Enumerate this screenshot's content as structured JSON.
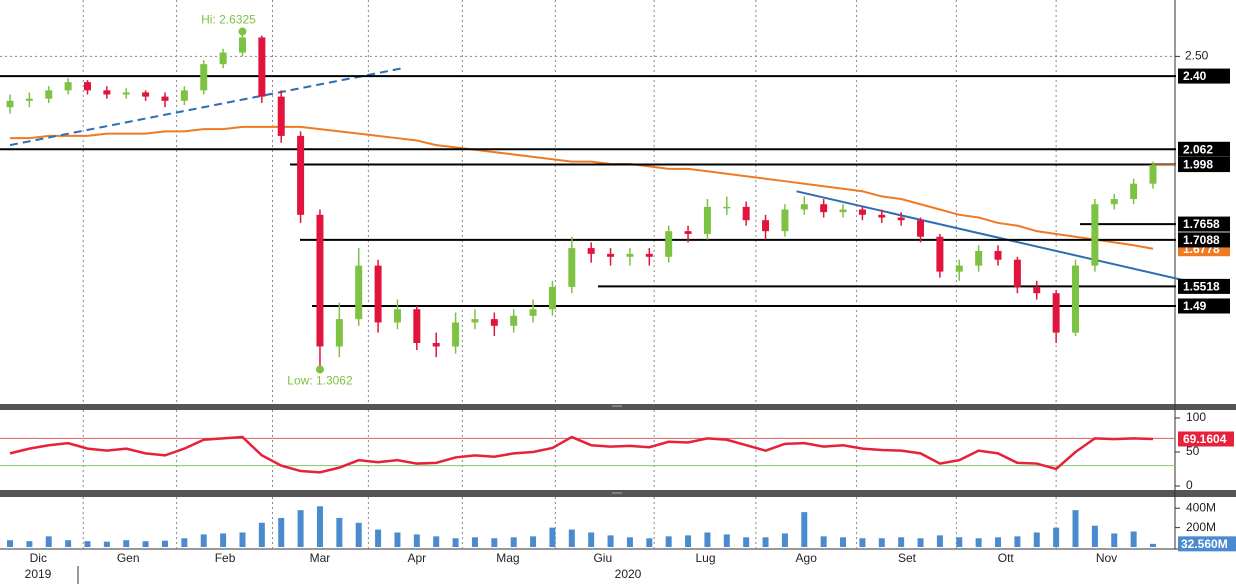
{
  "chart_data": {
    "type": "candlestick",
    "log": true,
    "up_color": "#7dc242",
    "down_color": "#e0143c",
    "open": [
      2.25,
      2.28,
      2.29,
      2.33,
      2.37,
      2.33,
      2.31,
      2.32,
      2.3,
      2.28,
      2.33,
      2.46,
      2.52,
      2.6,
      2.3,
      2.12,
      1.8,
      1.37,
      1.45,
      1.62,
      1.44,
      1.48,
      1.38,
      1.37,
      1.44,
      1.45,
      1.43,
      1.46,
      1.48,
      1.55,
      1.68,
      1.66,
      1.65,
      1.66,
      1.65,
      1.74,
      1.73,
      1.83,
      1.83,
      1.78,
      1.74,
      1.82,
      1.84,
      1.81,
      1.82,
      1.8,
      1.79,
      1.78,
      1.72,
      1.6,
      1.62,
      1.67,
      1.64,
      1.55,
      1.53,
      1.41,
      1.62,
      1.84,
      1.86,
      1.92
    ],
    "high": [
      2.31,
      2.32,
      2.35,
      2.39,
      2.38,
      2.35,
      2.34,
      2.33,
      2.32,
      2.35,
      2.48,
      2.54,
      2.6325,
      2.61,
      2.33,
      2.14,
      1.82,
      1.5,
      1.68,
      1.64,
      1.51,
      1.49,
      1.41,
      1.47,
      1.48,
      1.47,
      1.48,
      1.51,
      1.57,
      1.72,
      1.7,
      1.68,
      1.68,
      1.68,
      1.76,
      1.76,
      1.86,
      1.87,
      1.85,
      1.8,
      1.84,
      1.87,
      1.86,
      1.84,
      1.83,
      1.82,
      1.81,
      1.79,
      1.73,
      1.64,
      1.69,
      1.69,
      1.65,
      1.57,
      1.54,
      1.64,
      1.86,
      1.88,
      1.94,
      2.01
    ],
    "low": [
      2.22,
      2.25,
      2.27,
      2.31,
      2.31,
      2.29,
      2.29,
      2.28,
      2.25,
      2.26,
      2.31,
      2.44,
      2.5,
      2.27,
      2.09,
      1.77,
      1.3062,
      1.34,
      1.43,
      1.41,
      1.42,
      1.36,
      1.34,
      1.35,
      1.42,
      1.4,
      1.41,
      1.44,
      1.46,
      1.53,
      1.63,
      1.62,
      1.62,
      1.62,
      1.63,
      1.7,
      1.71,
      1.8,
      1.76,
      1.71,
      1.72,
      1.8,
      1.79,
      1.79,
      1.78,
      1.77,
      1.76,
      1.7,
      1.58,
      1.57,
      1.6,
      1.62,
      1.53,
      1.51,
      1.38,
      1.4,
      1.6,
      1.82,
      1.84,
      1.9
    ],
    "close": [
      2.28,
      2.29,
      2.33,
      2.37,
      2.33,
      2.31,
      2.32,
      2.3,
      2.28,
      2.33,
      2.46,
      2.52,
      2.6,
      2.3,
      2.12,
      1.8,
      1.37,
      1.45,
      1.62,
      1.44,
      1.48,
      1.38,
      1.37,
      1.44,
      1.45,
      1.43,
      1.46,
      1.48,
      1.55,
      1.68,
      1.66,
      1.65,
      1.66,
      1.65,
      1.74,
      1.73,
      1.83,
      1.83,
      1.78,
      1.74,
      1.82,
      1.84,
      1.81,
      1.82,
      1.8,
      1.79,
      1.78,
      1.72,
      1.6,
      1.62,
      1.67,
      1.64,
      1.55,
      1.53,
      1.41,
      1.62,
      1.84,
      1.86,
      1.92,
      1.997
    ],
    "ylim": [
      1.216,
      2.81
    ],
    "yticks": [
      {
        "value": 2.5,
        "label": "2.50"
      }
    ],
    "grid": true,
    "xticks": [
      {
        "value": 1.46,
        "label": "Dic"
      },
      {
        "value": 6.1,
        "label": "Gen"
      },
      {
        "value": 11.1,
        "label": "Feb"
      },
      {
        "value": 16.0,
        "label": "Mar"
      },
      {
        "value": 21.0,
        "label": "Apr"
      },
      {
        "value": 25.7,
        "label": "Mag"
      },
      {
        "value": 30.6,
        "label": "Giu"
      },
      {
        "value": 35.9,
        "label": "Lug"
      },
      {
        "value": 41.1,
        "label": "Ago"
      },
      {
        "value": 46.3,
        "label": "Set"
      },
      {
        "value": 51.4,
        "label": "Ott"
      },
      {
        "value": 56.6,
        "label": "Nov"
      }
    ],
    "years": [
      "2019",
      "2020"
    ],
    "levels": [
      {
        "value": 2.4,
        "label": "2.40"
      },
      2.062,
      1.998,
      1.7658,
      1.7088,
      1.5518,
      1.49
    ],
    "ma": {
      "color": "#f07a22",
      "values": [
        2.11,
        2.11,
        2.12,
        2.12,
        2.12,
        2.13,
        2.13,
        2.13,
        2.14,
        2.14,
        2.15,
        2.15,
        2.16,
        2.16,
        2.16,
        2.16,
        2.15,
        2.14,
        2.13,
        2.12,
        2.11,
        2.1,
        2.08,
        2.07,
        2.06,
        2.05,
        2.04,
        2.03,
        2.02,
        2.01,
        2.01,
        2.0,
        2.0,
        1.99,
        1.98,
        1.98,
        1.97,
        1.96,
        1.95,
        1.94,
        1.93,
        1.92,
        1.91,
        1.9,
        1.89,
        1.87,
        1.86,
        1.84,
        1.82,
        1.8,
        1.79,
        1.77,
        1.76,
        1.74,
        1.73,
        1.72,
        1.71,
        1.7,
        1.69,
        1.6778
      ]
    },
    "trendlines": [
      {
        "from": [
          0,
          2.08
        ],
        "to": [
          20.3,
          2.44
        ],
        "style": "dashed"
      },
      {
        "from": [
          40.6,
          1.89
        ],
        "to": [
          60.7,
          1.57
        ],
        "style": "solid"
      }
    ],
    "trend_color": "#2e6db4",
    "annotations": [
      "Hi: 2.6325",
      "Low: 1.3062"
    ],
    "rsi": {
      "color": "#e8213a",
      "ylim": [
        -5.9,
        111.8
      ],
      "yticks": [
        0,
        50,
        100
      ],
      "levels": [
        70,
        30
      ],
      "level_colors": [
        "#e06060",
        "#7fcc66"
      ],
      "values": [
        48,
        55,
        60,
        63,
        55,
        52,
        55,
        48,
        45,
        55,
        68,
        70,
        72,
        45,
        30,
        22,
        20,
        27,
        38,
        35,
        38,
        33,
        34,
        42,
        45,
        43,
        48,
        50,
        56,
        72,
        60,
        58,
        59,
        57,
        65,
        64,
        70,
        68,
        60,
        52,
        62,
        63,
        58,
        60,
        55,
        53,
        52,
        48,
        33,
        38,
        52,
        48,
        34,
        33,
        25,
        50,
        70,
        69,
        70,
        69.1604
      ]
    },
    "volume": {
      "color": "#4a8bd0",
      "ylim": [
        0,
        516000000
      ],
      "yticks": [
        {
          "value": 200000000,
          "label": "200M"
        },
        {
          "value": 400000000,
          "label": "400M"
        }
      ],
      "last_label": "32.560M",
      "values": [
        70000000,
        60000000,
        110000000,
        70000000,
        60000000,
        55000000,
        70000000,
        60000000,
        65000000,
        90000000,
        130000000,
        140000000,
        150000000,
        250000000,
        300000000,
        380000000,
        420000000,
        300000000,
        250000000,
        180000000,
        150000000,
        130000000,
        110000000,
        90000000,
        100000000,
        90000000,
        100000000,
        110000000,
        200000000,
        180000000,
        150000000,
        120000000,
        100000000,
        90000000,
        110000000,
        120000000,
        150000000,
        130000000,
        100000000,
        100000000,
        140000000,
        360000000,
        110000000,
        100000000,
        90000000,
        90000000,
        100000000,
        90000000,
        120000000,
        100000000,
        90000000,
        100000000,
        110000000,
        150000000,
        200000000,
        380000000,
        220000000,
        140000000,
        160000000,
        32560000
      ]
    }
  }
}
